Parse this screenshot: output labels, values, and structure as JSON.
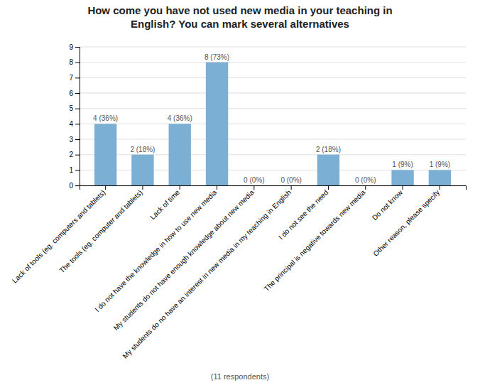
{
  "chart_data": {
    "type": "bar",
    "title": "How come you have not used new media in your teaching in\nEnglish? You can mark several alternatives",
    "categories": [
      "Lack of tools (eg. computers and tablets)",
      "The tools (eg. computer and tablets)",
      "Lack of time",
      "I do not have the knowledge in how to use new media",
      "My students do not have enough knowledge about new media",
      "My students do no have an interest in new media in my teaching in English",
      "I do not see the need",
      "The principal is negative towards new media",
      "Do not know",
      "Other reason, please specify"
    ],
    "values": [
      4,
      2,
      4,
      8,
      0,
      0,
      2,
      0,
      1,
      1
    ],
    "value_labels": [
      "4 (36%)",
      "2 (18%)",
      "4 (36%)",
      "8 (73%)",
      "0 (0%)",
      "0 (0%)",
      "2 (18%)",
      "0 (0%)",
      "1 (9%)",
      "1 (9%)"
    ],
    "data_labels": true,
    "color": "#7bafd4",
    "ylim": [
      0,
      9
    ],
    "yticks": [
      0,
      1,
      2,
      3,
      4,
      5,
      6,
      7,
      8,
      9
    ],
    "grid": true,
    "footer": "(11 respondents)"
  }
}
